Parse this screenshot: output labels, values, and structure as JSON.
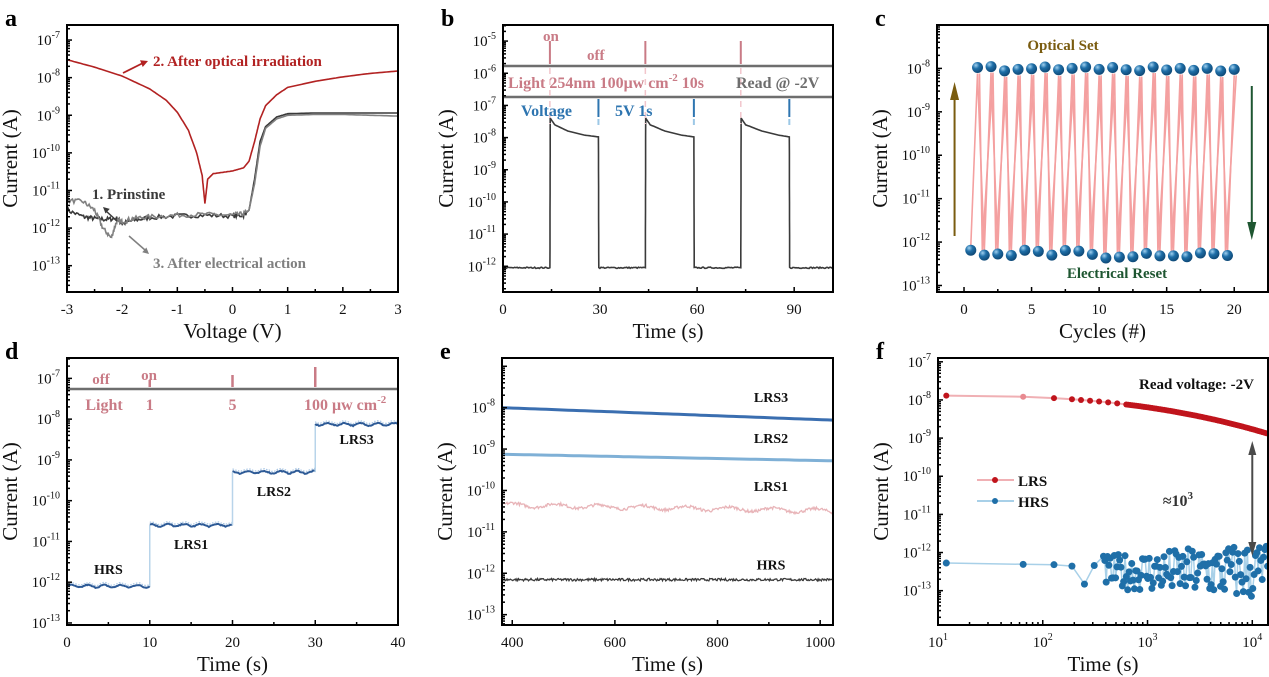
{
  "chart_data": [
    {
      "id": "a",
      "panel_label": "a",
      "type": "line",
      "xlabel": "Voltage (V)",
      "ylabel": "Current (A)",
      "xscale": "linear",
      "yscale": "log",
      "xlim": [
        -3,
        3
      ],
      "ylim_exp": [
        -13.7,
        -6.6
      ],
      "xticks": [
        -3,
        -2,
        -1,
        0,
        1,
        2,
        3
      ],
      "yticks_exp": [
        -13,
        -12,
        -11,
        -10,
        -9,
        -8,
        -7
      ],
      "series": [
        {
          "name": "2. After optical irradiation",
          "color": "#b22222",
          "x": [
            -3,
            -2.5,
            -2,
            -1.5,
            -1.2,
            -1,
            -0.8,
            -0.65,
            -0.55,
            -0.5,
            -0.45,
            -0.35,
            -0.2,
            0,
            0.2,
            0.3,
            0.4,
            0.5,
            0.6,
            0.8,
            1,
            1.5,
            2,
            2.5,
            3
          ],
          "y": [
            3e-08,
            1.9e-08,
            1.1e-08,
            5e-09,
            2.5e-09,
            1.2e-09,
            4e-10,
            1e-10,
            2.5e-11,
            4.5e-12,
            2e-11,
            2.8e-11,
            3e-11,
            3.3e-11,
            4e-11,
            6e-11,
            2e-10,
            8e-10,
            1.8e-09,
            3.5e-09,
            5.5e-09,
            8e-09,
            1.05e-08,
            1.3e-08,
            1.5e-08
          ]
        },
        {
          "name": "1. Prinstine",
          "color": "#3a3a3a",
          "x": [
            -3,
            -2.7,
            -2.5,
            -2.3,
            -2.1,
            -2,
            -1.8,
            -1.5,
            -1,
            -0.5,
            0,
            0.2,
            0.3,
            0.4,
            0.5,
            0.6,
            0.8,
            1,
            1.5,
            2,
            2.5,
            3
          ],
          "y": [
            3e-12,
            2e-12,
            1.8e-12,
            1.7e-12,
            1.8e-12,
            1.3e-12,
            1.6e-12,
            1.9e-12,
            2.1e-12,
            2.2e-12,
            2.1e-12,
            2.2e-12,
            3e-12,
            2e-11,
            2e-10,
            5e-10,
            9e-10,
            1.1e-09,
            1.15e-09,
            1.15e-09,
            1.15e-09,
            1.15e-09
          ]
        },
        {
          "name": "3. After electrical action",
          "color": "#808080",
          "x": [
            -3,
            -2.7,
            -2.5,
            -2.35,
            -2.2,
            -2.1,
            -2,
            -1.8,
            -1.5,
            -1,
            -0.5,
            0,
            0.2,
            0.3,
            0.4,
            0.5,
            0.6,
            0.8,
            1,
            1.5,
            2,
            2.5,
            3
          ],
          "y": [
            5.5e-12,
            5e-12,
            3e-12,
            1e-12,
            5.5e-13,
            1.5e-12,
            1.5e-12,
            1.8e-12,
            2e-12,
            2.2e-12,
            2.3e-12,
            2.2e-12,
            2.4e-12,
            3e-12,
            1.5e-11,
            1.5e-10,
            4.5e-10,
            8e-10,
            1e-09,
            1.05e-09,
            1.05e-09,
            1e-09,
            9.5e-10
          ]
        }
      ],
      "annotations": [
        {
          "text": "2. After optical irradiation",
          "color": "#b22222"
        },
        {
          "text": "1. Prinstine",
          "color": "#3a3a3a"
        },
        {
          "text": "3. After electrical action",
          "color": "#808080"
        }
      ]
    },
    {
      "id": "b",
      "panel_label": "b",
      "type": "line",
      "xlabel": "Time (s)",
      "ylabel": "Current (A)",
      "xscale": "linear",
      "yscale": "log",
      "xlim": [
        0,
        102
      ],
      "ylim_exp": [
        -12.8,
        -4.5
      ],
      "xticks": [
        0,
        30,
        60,
        90
      ],
      "yticks_exp": [
        -12,
        -11,
        -10,
        -9,
        -8,
        -7,
        -6,
        -5
      ],
      "series": [
        {
          "name": "Current",
          "color": "#3a3a3a",
          "x": [
            0,
            14.5,
            14.6,
            16,
            20,
            25,
            29.5,
            29.6,
            44,
            44.1,
            45.5,
            50,
            55,
            59,
            59.1,
            73.5,
            73.6,
            75,
            80,
            85,
            88.5,
            88.6,
            102
          ],
          "y": [
            9e-13,
            9e-13,
            4e-08,
            2.5e-08,
            1.6e-08,
            1.2e-08,
            1.05e-08,
            9e-13,
            9e-13,
            4e-08,
            2.5e-08,
            1.6e-08,
            1.2e-08,
            1.05e-08,
            9e-13,
            9e-13,
            4e-08,
            2.5e-08,
            1.6e-08,
            1.2e-08,
            1.05e-08,
            9e-13,
            9e-13
          ]
        }
      ],
      "light_pulses_s": [
        14.5,
        44,
        73.5
      ],
      "voltage_pulses_s": [
        29.5,
        59,
        88.5
      ],
      "labels": {
        "on": "on",
        "off": "off",
        "light": "Light 254nm 100μw cm",
        "light_sup": "-2",
        "light_tail": " 10s",
        "read": "Read @  -2V",
        "voltage": "Voltage",
        "voltage_pulse": "5V 1s"
      },
      "colors": {
        "light": "#c97b86",
        "voltage": "#2e75b0",
        "band": "#6e6e6e"
      }
    },
    {
      "id": "c",
      "panel_label": "c",
      "type": "scatter",
      "xlabel": "Cycles (#)",
      "ylabel": "Current (A)",
      "xscale": "linear",
      "yscale": "log",
      "xlim": [
        -2,
        22.5
      ],
      "ylim_exp": [
        -13.15,
        -7.0
      ],
      "xticks": [
        0,
        5,
        10,
        15,
        20
      ],
      "yticks_exp": [
        -13,
        -12,
        -11,
        -10,
        -9,
        -8
      ],
      "series": [
        {
          "name": "Optical Set",
          "x": [
            1,
            2,
            3,
            4,
            5,
            6,
            7,
            8,
            9,
            10,
            11,
            12,
            13,
            14,
            15,
            16,
            17,
            18,
            19,
            20
          ],
          "y": [
            1.05e-08,
            1.1e-08,
            8.8e-09,
            9.5e-09,
            9.8e-09,
            1.08e-08,
            9.3e-09,
            1e-08,
            1.08e-08,
            9.5e-09,
            1.05e-08,
            9.3e-09,
            8.9e-09,
            1.08e-08,
            9.2e-09,
            1e-08,
            9e-09,
            1e-08,
            8.7e-09,
            9.5e-09
          ]
        },
        {
          "name": "Electrical Reset",
          "x": [
            0.5,
            1.5,
            2.5,
            3.5,
            4.5,
            5.5,
            6.5,
            7.5,
            8.5,
            9.5,
            10.5,
            11.5,
            12.5,
            13.5,
            14.5,
            15.5,
            16.5,
            17.5,
            18.5,
            19.5
          ],
          "y": [
            6.5e-13,
            5e-13,
            5.3e-13,
            4.9e-13,
            6.5e-13,
            6.1e-13,
            5e-13,
            6.4e-13,
            6.2e-13,
            5.2e-13,
            4.3e-13,
            4.5e-13,
            4.6e-13,
            5.5e-13,
            4.8e-13,
            4.8e-13,
            4.6e-13,
            5.6e-13,
            5.4e-13,
            4.9e-13
          ]
        }
      ],
      "annotations": [
        {
          "text": "Optical Set",
          "color": "#7a5c10"
        },
        {
          "text": "Electrical Reset",
          "color": "#1e5631"
        }
      ],
      "colors": {
        "marker": "#1f6fa8",
        "line": "#f4a0a0",
        "up_arrow": "#7a5c10",
        "down_arrow": "#1e5631"
      }
    },
    {
      "id": "d",
      "panel_label": "d",
      "type": "line",
      "xlabel": "Time (s)",
      "ylabel": "Current (A)",
      "xscale": "linear",
      "yscale": "log",
      "xlim": [
        0,
        40
      ],
      "ylim_exp": [
        -13.05,
        -6.5
      ],
      "xticks": [
        0,
        10,
        20,
        30,
        40
      ],
      "yticks_exp": [
        -13,
        -12,
        -11,
        -10,
        -9,
        -8,
        -7
      ],
      "series": [
        {
          "name": "Current",
          "color": "#2d5a96",
          "steps": [
            {
              "from": 0,
              "to": 10,
              "y": 8e-13,
              "label": "HRS"
            },
            {
              "from": 10,
              "to": 20,
              "y": 2.5e-11,
              "label": "LRS1"
            },
            {
              "from": 20,
              "to": 30,
              "y": 5e-10,
              "label": "LRS2"
            },
            {
              "from": 30,
              "to": 40,
              "y": 7.5e-09,
              "label": "LRS3"
            }
          ]
        }
      ],
      "labels": {
        "off": "off",
        "on": "on",
        "light": "Light",
        "p1": "1",
        "p2": "5",
        "p3": "100 μw cm",
        "p3_sup": "-2"
      },
      "pulse_times_s": [
        10,
        20,
        30
      ],
      "colors": {
        "light": "#c97b86",
        "band": "#6e6e6e",
        "edge": "#b8d4ea"
      }
    },
    {
      "id": "e",
      "panel_label": "e",
      "type": "line",
      "xlabel": "Time (s)",
      "ylabel": "Current (A)",
      "xscale": "linear",
      "yscale": "log",
      "xlim": [
        380,
        1025
      ],
      "ylim_exp": [
        -13.25,
        -6.8
      ],
      "xticks": [
        400,
        600,
        800,
        1000
      ],
      "yticks_exp": [
        -13,
        -12,
        -11,
        -10,
        -9,
        -8
      ],
      "series": [
        {
          "name": "LRS3",
          "color": "#3a6eb0",
          "start": 1e-08,
          "end": 5e-09,
          "noise": 0
        },
        {
          "name": "LRS2",
          "color": "#7fb0d6",
          "start": 7.5e-10,
          "end": 5.2e-10,
          "noise": 0
        },
        {
          "name": "LRS1",
          "color": "#e8b4b8",
          "start": 4.5e-11,
          "end": 3.2e-11,
          "noise": 0.07
        },
        {
          "name": "HRS",
          "color": "#3a3a3a",
          "start": 7e-13,
          "end": 7e-13,
          "noise": 0.06
        }
      ]
    },
    {
      "id": "f",
      "panel_label": "f",
      "type": "scatter",
      "xlabel": "Time (s)",
      "ylabel": "Current (A)",
      "xscale": "log",
      "yscale": "log",
      "xlim_exp": [
        1,
        4.15
      ],
      "ylim_exp": [
        -13.9,
        -6.9
      ],
      "xticks_exp": [
        1,
        2,
        3,
        4
      ],
      "yticks_exp": [
        -13,
        -12,
        -11,
        -10,
        -9,
        -8,
        -7
      ],
      "series": [
        {
          "name": "LRS",
          "color": "#c0141c",
          "line_color": "#f0b0b4",
          "start": 1.3e-08,
          "end": 1.3e-09
        },
        {
          "name": "HRS",
          "color": "#1f6fa8",
          "line_color": "#a8d0e8",
          "base": 5e-13
        }
      ],
      "annotations": [
        {
          "text": "Read voltage: -2V"
        },
        {
          "text": "≈10",
          "sup": "3"
        }
      ],
      "legend": [
        "LRS",
        "HRS"
      ],
      "legend_placement": "center-left"
    }
  ]
}
